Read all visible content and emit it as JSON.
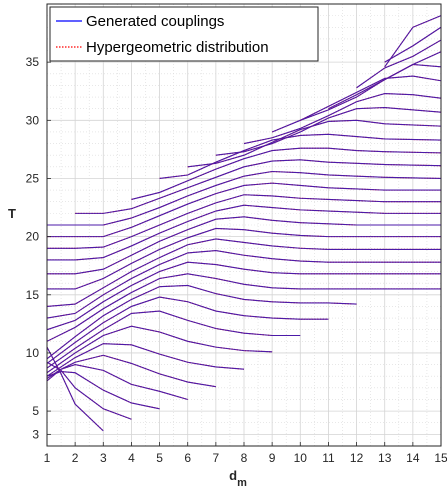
{
  "chart_data": {
    "type": "line",
    "title": "",
    "xlabel": "d",
    "xlabel_subscript": "m",
    "ylabel": "T",
    "xlim": [
      1,
      15
    ],
    "ylim": [
      2,
      40
    ],
    "xticks": [
      1,
      2,
      3,
      4,
      5,
      6,
      7,
      8,
      9,
      10,
      11,
      12,
      13,
      14,
      15
    ],
    "yticks": [
      3,
      5,
      10,
      15,
      20,
      25,
      30,
      35
    ],
    "grid": true,
    "legend_position": "top-left",
    "legend": [
      {
        "name": "Generated couplings",
        "color": "#0000ff",
        "style": "solid"
      },
      {
        "name": "Hypergeometric distribution",
        "color": "#ff0000",
        "style": "dotted"
      }
    ],
    "series_model": "Family of curves, one per T level (~3 to ~39). Each curve spans x from 1 to 15 where defined; lower T curves start at x=1 and end early, higher T curves begin at larger x. Blue (generated) and red dotted (hypergeometric) nearly overlap, drawn as purple.",
    "series": [
      {
        "x": [
          1,
          1.5,
          2,
          3
        ],
        "y": [
          10.5,
          8.2,
          5.6,
          3.3
        ]
      },
      {
        "x": [
          1,
          1.5,
          2,
          3,
          4
        ],
        "y": [
          9.2,
          8.5,
          7.0,
          5.2,
          4.3
        ]
      },
      {
        "x": [
          1,
          1.5,
          2,
          3,
          4,
          5
        ],
        "y": [
          8.0,
          8.4,
          8.3,
          6.8,
          5.7,
          5.2
        ]
      },
      {
        "x": [
          1,
          1.5,
          2,
          3,
          4,
          5,
          6
        ],
        "y": [
          7.6,
          8.6,
          9.0,
          8.5,
          7.3,
          6.7,
          6.0
        ]
      },
      {
        "x": [
          1,
          1.5,
          2,
          3,
          4,
          5,
          6,
          7
        ],
        "y": [
          7.8,
          8.6,
          9.2,
          9.8,
          9.1,
          8.2,
          7.5,
          7.1
        ]
      },
      {
        "x": [
          1,
          2,
          3,
          4,
          5,
          6,
          7,
          8
        ],
        "y": [
          8.0,
          9.6,
          10.8,
          10.7,
          9.9,
          9.2,
          8.8,
          8.6
        ]
      },
      {
        "x": [
          1,
          2,
          3,
          4,
          5,
          6,
          7,
          8,
          9
        ],
        "y": [
          8.3,
          10.0,
          11.5,
          12.3,
          11.8,
          11.0,
          10.5,
          10.2,
          10.1
        ]
      },
      {
        "x": [
          1,
          2,
          3,
          4,
          5,
          6,
          7,
          8,
          9,
          10
        ],
        "y": [
          8.7,
          10.4,
          12.0,
          13.4,
          13.6,
          12.8,
          12.1,
          11.7,
          11.5,
          11.5
        ]
      },
      {
        "x": [
          1,
          2,
          3,
          4,
          5,
          6,
          7,
          8,
          9,
          10,
          11
        ],
        "y": [
          9.1,
          10.9,
          12.6,
          14.0,
          14.8,
          14.4,
          13.6,
          13.2,
          13.0,
          12.9,
          12.9
        ]
      },
      {
        "x": [
          1,
          2,
          3,
          4,
          5,
          6,
          7,
          8,
          9,
          10,
          11,
          12
        ],
        "y": [
          9.5,
          11.4,
          13.2,
          14.6,
          15.7,
          15.8,
          15.1,
          14.6,
          14.4,
          14.3,
          14.3,
          14.2
        ]
      },
      {
        "x": [
          1,
          2,
          3,
          4,
          5,
          6,
          7,
          8,
          9,
          10,
          11,
          12,
          13,
          15
        ],
        "y": [
          11.0,
          12.2,
          13.8,
          15.2,
          16.4,
          16.8,
          16.4,
          15.9,
          15.6,
          15.5,
          15.5,
          15.5,
          15.5,
          15.5
        ]
      },
      {
        "x": [
          1,
          2,
          3,
          4,
          5,
          6,
          7,
          8,
          9,
          10,
          11,
          12,
          13,
          15
        ],
        "y": [
          12.0,
          12.8,
          14.4,
          15.8,
          17.0,
          17.8,
          17.6,
          17.2,
          16.9,
          16.8,
          16.8,
          16.8,
          16.8,
          16.8
        ]
      },
      {
        "x": [
          1,
          2,
          3,
          4,
          5,
          6,
          7,
          8,
          9,
          10,
          11,
          12,
          13,
          15
        ],
        "y": [
          13.0,
          13.4,
          15.0,
          16.4,
          17.6,
          18.6,
          18.8,
          18.4,
          18.1,
          17.9,
          17.8,
          17.8,
          17.8,
          17.8
        ]
      },
      {
        "x": [
          1,
          2,
          3,
          4,
          5,
          6,
          7,
          8,
          9,
          10,
          11,
          12,
          13,
          15
        ],
        "y": [
          14.0,
          14.2,
          15.6,
          17.0,
          18.2,
          19.3,
          19.8,
          19.5,
          19.2,
          19.0,
          18.9,
          18.9,
          18.9,
          18.9
        ]
      },
      {
        "x": [
          1,
          2,
          3,
          4,
          5,
          6,
          7,
          8,
          9,
          10,
          11,
          12,
          13,
          15
        ],
        "y": [
          15.5,
          15.5,
          16.4,
          17.7,
          18.9,
          19.9,
          20.7,
          20.6,
          20.3,
          20.1,
          20.0,
          20.0,
          20.0,
          20.0
        ]
      },
      {
        "x": [
          1,
          2,
          3,
          4,
          5,
          6,
          7,
          8,
          9,
          10,
          11,
          12,
          13,
          15
        ],
        "y": [
          16.8,
          16.8,
          17.2,
          18.4,
          19.6,
          20.6,
          21.5,
          21.7,
          21.4,
          21.2,
          21.1,
          21.0,
          21.0,
          21.0
        ]
      },
      {
        "x": [
          1,
          2,
          3,
          4,
          5,
          6,
          7,
          8,
          9,
          10,
          11,
          12,
          13,
          15
        ],
        "y": [
          18.0,
          18.0,
          18.2,
          19.2,
          20.3,
          21.3,
          22.2,
          22.7,
          22.5,
          22.3,
          22.2,
          22.1,
          22.0,
          22.0
        ]
      },
      {
        "x": [
          1,
          2,
          3,
          4,
          5,
          6,
          7,
          8,
          9,
          10,
          11,
          12,
          13,
          15
        ],
        "y": [
          19.0,
          19.0,
          19.1,
          20.0,
          21.0,
          22.0,
          22.9,
          23.6,
          23.5,
          23.3,
          23.2,
          23.1,
          23.0,
          23.0
        ]
      },
      {
        "x": [
          1,
          2,
          3,
          4,
          5,
          6,
          7,
          8,
          9,
          10,
          11,
          12,
          13,
          15
        ],
        "y": [
          20.0,
          20.0,
          20.0,
          20.8,
          21.8,
          22.8,
          23.7,
          24.4,
          24.6,
          24.4,
          24.2,
          24.1,
          24.0,
          24.0
        ]
      },
      {
        "x": [
          1,
          2,
          3,
          4,
          5,
          6,
          7,
          8,
          9,
          10,
          11,
          12,
          13,
          15
        ],
        "y": [
          21.0,
          21.0,
          21.0,
          21.6,
          22.5,
          23.5,
          24.4,
          25.2,
          25.6,
          25.5,
          25.3,
          25.2,
          25.1,
          25.0
        ]
      },
      {
        "x": [
          2,
          3,
          4,
          5,
          6,
          7,
          8,
          9,
          10,
          11,
          12,
          13,
          15
        ],
        "y": [
          22.0,
          22.0,
          22.4,
          23.3,
          24.2,
          25.1,
          26.0,
          26.5,
          26.6,
          26.4,
          26.3,
          26.2,
          26.1
        ]
      },
      {
        "x": [
          4,
          5,
          6,
          7,
          8,
          9,
          10,
          11,
          12,
          13,
          15
        ],
        "y": [
          23.2,
          23.8,
          24.8,
          25.8,
          26.7,
          27.4,
          27.6,
          27.6,
          27.4,
          27.3,
          27.2
        ]
      },
      {
        "x": [
          5,
          6,
          7,
          8,
          9,
          10,
          11,
          12,
          13,
          15
        ],
        "y": [
          25.0,
          25.3,
          26.4,
          27.4,
          28.3,
          28.7,
          28.8,
          28.6,
          28.4,
          28.3
        ]
      },
      {
        "x": [
          6,
          7,
          8,
          9,
          10,
          11,
          12,
          13,
          15
        ],
        "y": [
          26.0,
          26.3,
          27.0,
          28.1,
          29.2,
          29.9,
          30.0,
          29.7,
          29.5
        ]
      },
      {
        "x": [
          7,
          8,
          9,
          10,
          11,
          12,
          13,
          15
        ],
        "y": [
          27.0,
          27.3,
          28.0,
          29.0,
          30.2,
          31.0,
          31.1,
          30.7
        ]
      },
      {
        "x": [
          8,
          9,
          10,
          11,
          12,
          13,
          14,
          15
        ],
        "y": [
          28.0,
          28.5,
          29.3,
          30.4,
          31.6,
          32.3,
          32.2,
          31.9
        ]
      },
      {
        "x": [
          9,
          10,
          11,
          12,
          13,
          14,
          15
        ],
        "y": [
          29.0,
          30.0,
          31.2,
          32.4,
          33.6,
          33.8,
          33.4
        ]
      },
      {
        "x": [
          10,
          11,
          12,
          13,
          14,
          15
        ],
        "y": [
          30.0,
          30.9,
          32.0,
          33.5,
          34.8,
          34.6
        ]
      },
      {
        "x": [
          11,
          12,
          13,
          14,
          15
        ],
        "y": [
          31.0,
          32.2,
          33.5,
          34.8,
          35.9
        ]
      },
      {
        "x": [
          12,
          13,
          14,
          15
        ],
        "y": [
          32.8,
          34.5,
          35.5,
          36.9
        ]
      },
      {
        "x": [
          13,
          14,
          15
        ],
        "y": [
          35.0,
          36.4,
          38.0
        ]
      },
      {
        "x": [
          13,
          14,
          15
        ],
        "y": [
          34.6,
          38.0,
          39.0
        ]
      }
    ]
  }
}
